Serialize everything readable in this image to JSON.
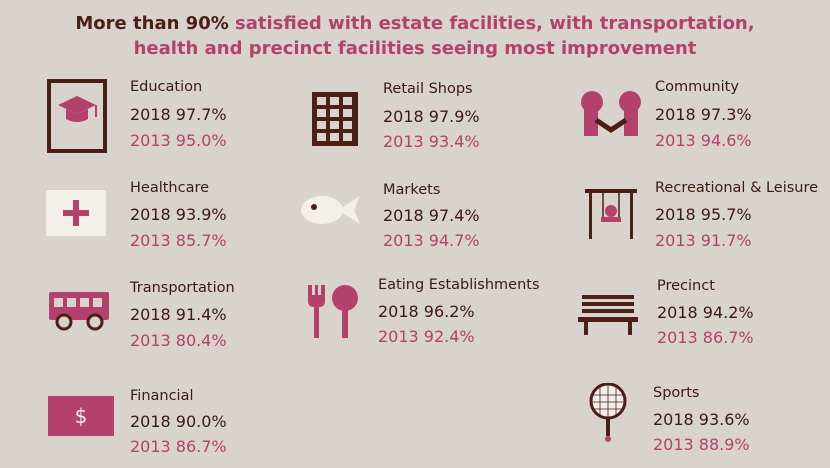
{
  "title": {
    "line1_bold": "More than 90%",
    "line1_rest": " satisfied with estate facilities, with transportation,",
    "line2": "health and precinct facilities seeing most improvement"
  },
  "items": [
    {
      "label": "Education",
      "y2018": "2018 97.7%",
      "y2013": "2013 95.0%",
      "icon": "graduation-cap-icon"
    },
    {
      "label": "Retail Shops",
      "y2018": "2018 97.9%",
      "y2013": "2013 93.4%",
      "icon": "building-icon"
    },
    {
      "label": "Community",
      "y2018": "2018 97.3%",
      "y2013": "2013 94.6%",
      "icon": "handshake-icon"
    },
    {
      "label": "Healthcare",
      "y2018": "2018 93.9%",
      "y2013": "2013 85.7%",
      "icon": "medical-cross-icon"
    },
    {
      "label": "Markets",
      "y2018": "2018 97.4%",
      "y2013": "2013 94.7%",
      "icon": "fish-icon"
    },
    {
      "label": "Recreational & Leisure",
      "y2018": "2018 95.7%",
      "y2013": "2013 91.7%",
      "icon": "swing-icon"
    },
    {
      "label": "Transportation",
      "y2018": "2018  91.4%",
      "y2013": "2013  80.4%",
      "icon": "bus-icon"
    },
    {
      "label": "Eating Establishments",
      "y2018": "2018 96.2%",
      "y2013": "2013 92.4%",
      "icon": "fork-spoon-icon"
    },
    {
      "label": "Precinct",
      "y2018": "2018 94.2%",
      "y2013": "2013  86.7%",
      "icon": "bench-icon"
    },
    {
      "label": "Financial",
      "y2018": "2018  90.0%",
      "y2013": "2013  86.7%",
      "icon": "dollar-icon",
      "symbol": "$"
    },
    {
      "label": "Sports",
      "y2018": "2018  93.6%",
      "y2013": "2013 88.9%",
      "icon": "tennis-racket-icon"
    }
  ],
  "colors": {
    "background": "#d9d3cd",
    "dark": "#4b1e16",
    "pink": "#b3416c"
  }
}
